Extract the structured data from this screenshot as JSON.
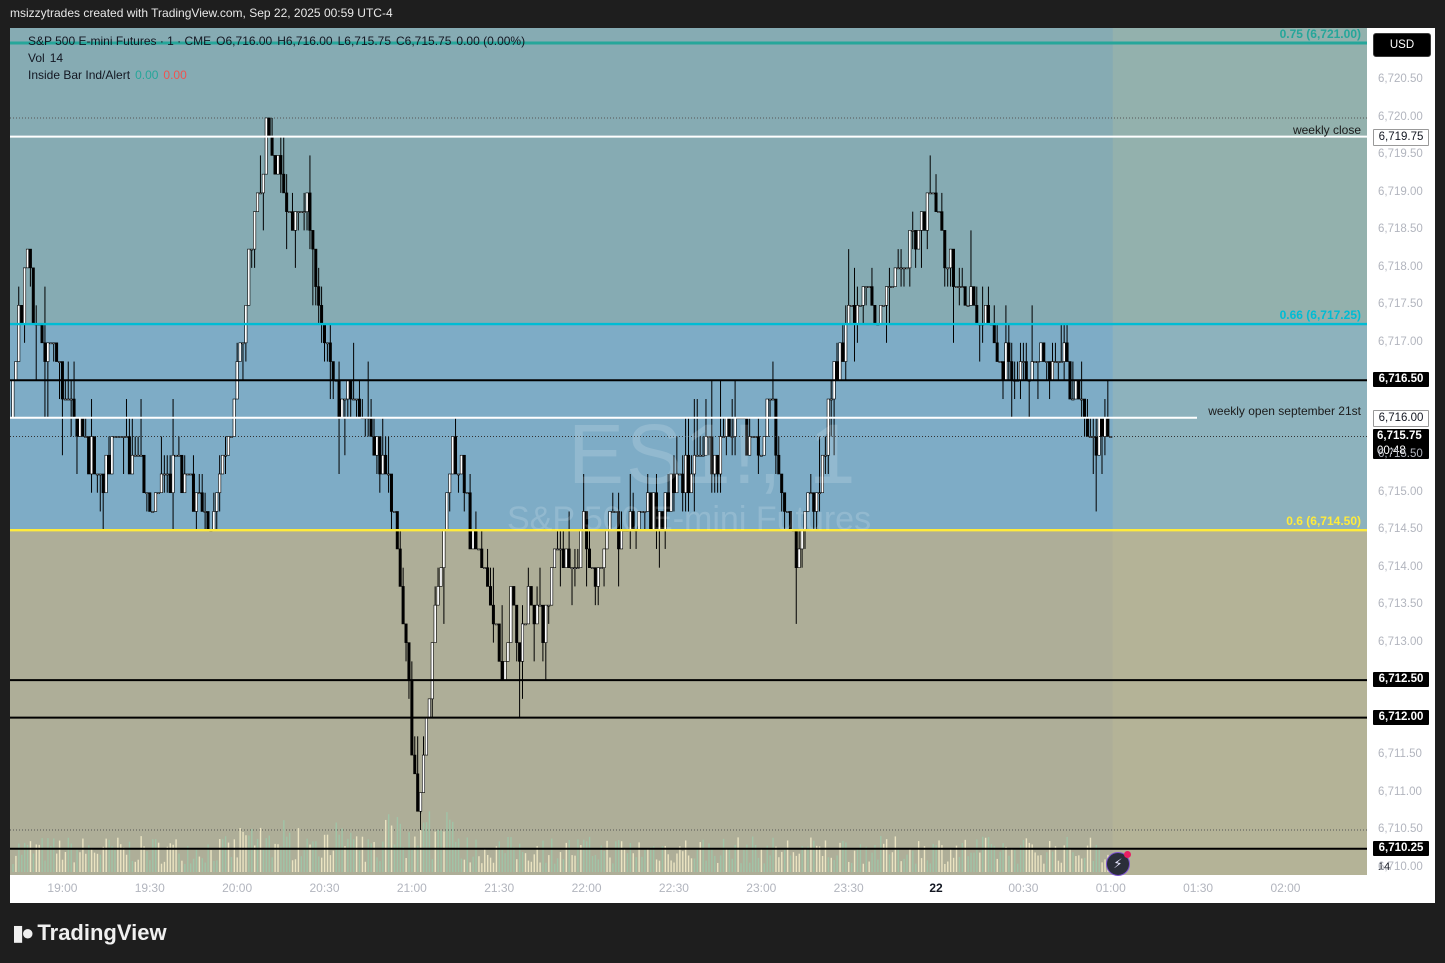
{
  "header": {
    "title": "msizzytrades created with TradingView.com, Sep 22, 2025 00:59 UTC-4"
  },
  "legend": {
    "line1": {
      "symbol": "S&P 500 E-mini Futures · 1 · CME",
      "open": "O6,716.00",
      "high": "H6,716.00",
      "low": "L6,715.75",
      "close": "C6,715.75",
      "change": "0.00 (0.00%)"
    },
    "line2": {
      "label": "Vol",
      "value": "14"
    },
    "line3": {
      "label": "Inside Bar Ind/Alert",
      "v1": "0.00",
      "v2": "0.00"
    }
  },
  "watermark": {
    "symbol": "ES1!, 1",
    "name": "S&P 500 E-mini Futures"
  },
  "currency_button": "USD",
  "volume_tag": "14",
  "logo_text": "TradingView",
  "colors": {
    "upper_zone": "#86abb3",
    "mid_zone": "#7eacc6",
    "lower_zone": "#aeae98",
    "future_overlay": "rgba(210,205,150,0.18)",
    "fib_075": "#26a69a",
    "fib_066": "#00bcd4",
    "fib_06": "#ffeb3b",
    "white_line": "#ffffff",
    "black_line": "#000000"
  },
  "icons": {
    "alert": "lightning-alert-icon",
    "logo": "tradingview-logo-icon"
  },
  "chart_data": {
    "type": "candlestick",
    "y_axis": {
      "min": 6709.9,
      "max": 6721.2,
      "ticks": [
        "6,710.00",
        "6,710.50",
        "6,711.00",
        "6,711.50",
        "6,712.00",
        "6,712.50",
        "6,713.00",
        "6,713.50",
        "6,714.00",
        "6,714.50",
        "6,715.00",
        "6,715.50",
        "6,716.00",
        "6,716.50",
        "6,717.00",
        "6,717.50",
        "6,718.00",
        "6,718.50",
        "6,719.00",
        "6,719.50",
        "6,720.00",
        "6,720.50"
      ],
      "tick_values": [
        6710.0,
        6710.5,
        6711.0,
        6711.5,
        6712.0,
        6712.5,
        6713.0,
        6713.5,
        6714.0,
        6714.5,
        6715.0,
        6715.5,
        6716.0,
        6716.5,
        6717.0,
        6717.5,
        6718.0,
        6718.5,
        6719.0,
        6719.5,
        6720.0,
        6720.5
      ]
    },
    "x_axis": {
      "ticks": [
        "19:00",
        "19:30",
        "20:00",
        "20:30",
        "21:00",
        "21:30",
        "22:00",
        "22:30",
        "23:00",
        "23:30",
        "22",
        "00:30",
        "01:00",
        "01:30",
        "02:00"
      ],
      "tick_minutes": [
        -360,
        -330,
        -300,
        -270,
        -240,
        -210,
        -180,
        -150,
        -120,
        -90,
        -60,
        -30,
        0,
        30,
        60
      ],
      "range_minutes": [
        -378,
        88
      ],
      "last_bar_minute": 0
    },
    "horizontal_levels": [
      {
        "price": 6721.0,
        "label": "0.75 (6,721.00)",
        "color": "#26a69a",
        "kind": "fib"
      },
      {
        "price": 6717.25,
        "label": "0.66 (6,717.25)",
        "color": "#00bcd4",
        "kind": "fib"
      },
      {
        "price": 6714.5,
        "label": "0.6 (6,714.50)",
        "color": "#ffeb3b",
        "kind": "fib"
      },
      {
        "price": 6719.75,
        "label": "weekly close",
        "tag": "6,719.75",
        "color": "#ffffff",
        "kind": "white"
      },
      {
        "price": 6716.0,
        "label": "weekly open september 21st",
        "tag": "6,716.00",
        "color": "#ffffff",
        "kind": "white"
      },
      {
        "price": 6716.5,
        "tag": "6,716.50",
        "color": "#000000",
        "kind": "black"
      },
      {
        "price": 6712.5,
        "tag": "6,712.50",
        "color": "#000000",
        "kind": "black"
      },
      {
        "price": 6712.0,
        "tag": "6,712.00",
        "color": "#000000",
        "kind": "black"
      },
      {
        "price": 6710.25,
        "tag": "6,710.25",
        "color": "#000000",
        "kind": "black"
      }
    ],
    "last_price": {
      "price": 6715.75,
      "label": "6,715.75",
      "countdown": "00:48"
    },
    "close_anchors": [
      [
        -378,
        6716.0
      ],
      [
        -375,
        6717.3
      ],
      [
        -372,
        6718.0
      ],
      [
        -368,
        6717.0
      ],
      [
        -362,
        6716.8
      ],
      [
        -357,
        6716.3
      ],
      [
        -352,
        6715.6
      ],
      [
        -346,
        6715.3
      ],
      [
        -340,
        6715.8
      ],
      [
        -334,
        6715.2
      ],
      [
        -328,
        6714.9
      ],
      [
        -322,
        6715.4
      ],
      [
        -316,
        6715.0
      ],
      [
        -310,
        6714.6
      ],
      [
        -305,
        6715.2
      ],
      [
        -300,
        6716.6
      ],
      [
        -295,
        6718.4
      ],
      [
        -290,
        6719.7
      ],
      [
        -286,
        6719.3
      ],
      [
        -281,
        6718.6
      ],
      [
        -276,
        6718.8
      ],
      [
        -272,
        6717.6
      ],
      [
        -268,
        6716.6
      ],
      [
        -264,
        6716.0
      ],
      [
        -259,
        6716.4
      ],
      [
        -254,
        6715.7
      ],
      [
        -249,
        6715.3
      ],
      [
        -245,
        6714.3
      ],
      [
        -242,
        6713.0
      ],
      [
        -240,
        6711.8
      ],
      [
        -238,
        6711.0
      ],
      [
        -236,
        6711.6
      ],
      [
        -232,
        6713.2
      ],
      [
        -229,
        6714.8
      ],
      [
        -226,
        6715.6
      ],
      [
        -223,
        6715.3
      ],
      [
        -220,
        6714.5
      ],
      [
        -216,
        6714.0
      ],
      [
        -212,
        6713.4
      ],
      [
        -209,
        6712.4
      ],
      [
        -206,
        6713.6
      ],
      [
        -203,
        6713.0
      ],
      [
        -199,
        6713.6
      ],
      [
        -195,
        6713.1
      ],
      [
        -191,
        6714.2
      ],
      [
        -186,
        6714.0
      ],
      [
        -181,
        6714.4
      ],
      [
        -176,
        6713.8
      ],
      [
        -171,
        6714.6
      ],
      [
        -166,
        6714.4
      ],
      [
        -161,
        6715.0
      ],
      [
        -156,
        6714.6
      ],
      [
        -151,
        6715.0
      ],
      [
        -146,
        6715.2
      ],
      [
        -141,
        6715.6
      ],
      [
        -136,
        6715.4
      ],
      [
        -131,
        6716.0
      ],
      [
        -126,
        6715.8
      ],
      [
        -121,
        6715.5
      ],
      [
        -117,
        6716.3
      ],
      [
        -112,
        6715.0
      ],
      [
        -108,
        6714.3
      ],
      [
        -104,
        6714.9
      ],
      [
        -100,
        6715.1
      ],
      [
        -96,
        6716.2
      ],
      [
        -92,
        6717.1
      ],
      [
        -88,
        6717.5
      ],
      [
        -84,
        6717.8
      ],
      [
        -80,
        6717.2
      ],
      [
        -76,
        6717.7
      ],
      [
        -71,
        6718.1
      ],
      [
        -66,
        6718.6
      ],
      [
        -62,
        6718.9
      ],
      [
        -58,
        6718.4
      ],
      [
        -54,
        6717.9
      ],
      [
        -50,
        6717.6
      ],
      [
        -45,
        6717.4
      ],
      [
        -40,
        6717.0
      ],
      [
        -35,
        6716.7
      ],
      [
        -30,
        6716.6
      ],
      [
        -25,
        6716.9
      ],
      [
        -20,
        6716.5
      ],
      [
        -16,
        6716.7
      ],
      [
        -12,
        6716.2
      ],
      [
        -8,
        6715.7
      ],
      [
        -4,
        6715.9
      ],
      [
        0,
        6715.75
      ]
    ],
    "notable_extremes": {
      "high": 6720.0,
      "low": 6710.6
    },
    "volume_note": "volume histogram along bottom, last bar volume 14"
  }
}
